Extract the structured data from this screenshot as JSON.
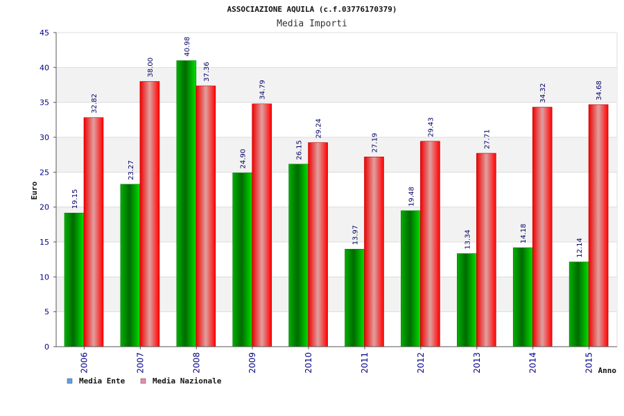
{
  "chart_data": {
    "type": "bar",
    "title": "ASSOCIAZIONE AQUILA (c.f.03776170379)",
    "subtitle": "Media Importi",
    "xlabel": "Anno",
    "ylabel": "Euro",
    "ylim": [
      0,
      45
    ],
    "yticks": [
      0,
      5,
      10,
      15,
      20,
      25,
      30,
      35,
      40,
      45
    ],
    "categories": [
      "2006",
      "2007",
      "2008",
      "2009",
      "2010",
      "2011",
      "2012",
      "2013",
      "2014",
      "2015"
    ],
    "series": [
      {
        "name": "Media Ente",
        "color": "#00c000",
        "legend_color": "#5aa0e8",
        "values": [
          19.15,
          23.27,
          40.98,
          24.9,
          26.15,
          13.97,
          19.48,
          13.34,
          14.18,
          12.14
        ],
        "labels": [
          "19.15",
          "23.27",
          "40.98",
          "24.90",
          "26.15",
          "13.97",
          "19.48",
          "13.34",
          "14.18",
          "12.14"
        ]
      },
      {
        "name": "Media Nazionale",
        "color": "#ee0000",
        "legend_color": "#e88ab0",
        "values": [
          32.82,
          38.0,
          37.36,
          34.79,
          29.24,
          27.19,
          29.43,
          27.71,
          34.32,
          34.68
        ],
        "labels": [
          "32.82",
          "38.00",
          "37.36",
          "34.79",
          "29.24",
          "27.19",
          "29.43",
          "27.71",
          "34.32",
          "34.68"
        ]
      }
    ],
    "grid": true,
    "legend_position": "bottom-left"
  }
}
